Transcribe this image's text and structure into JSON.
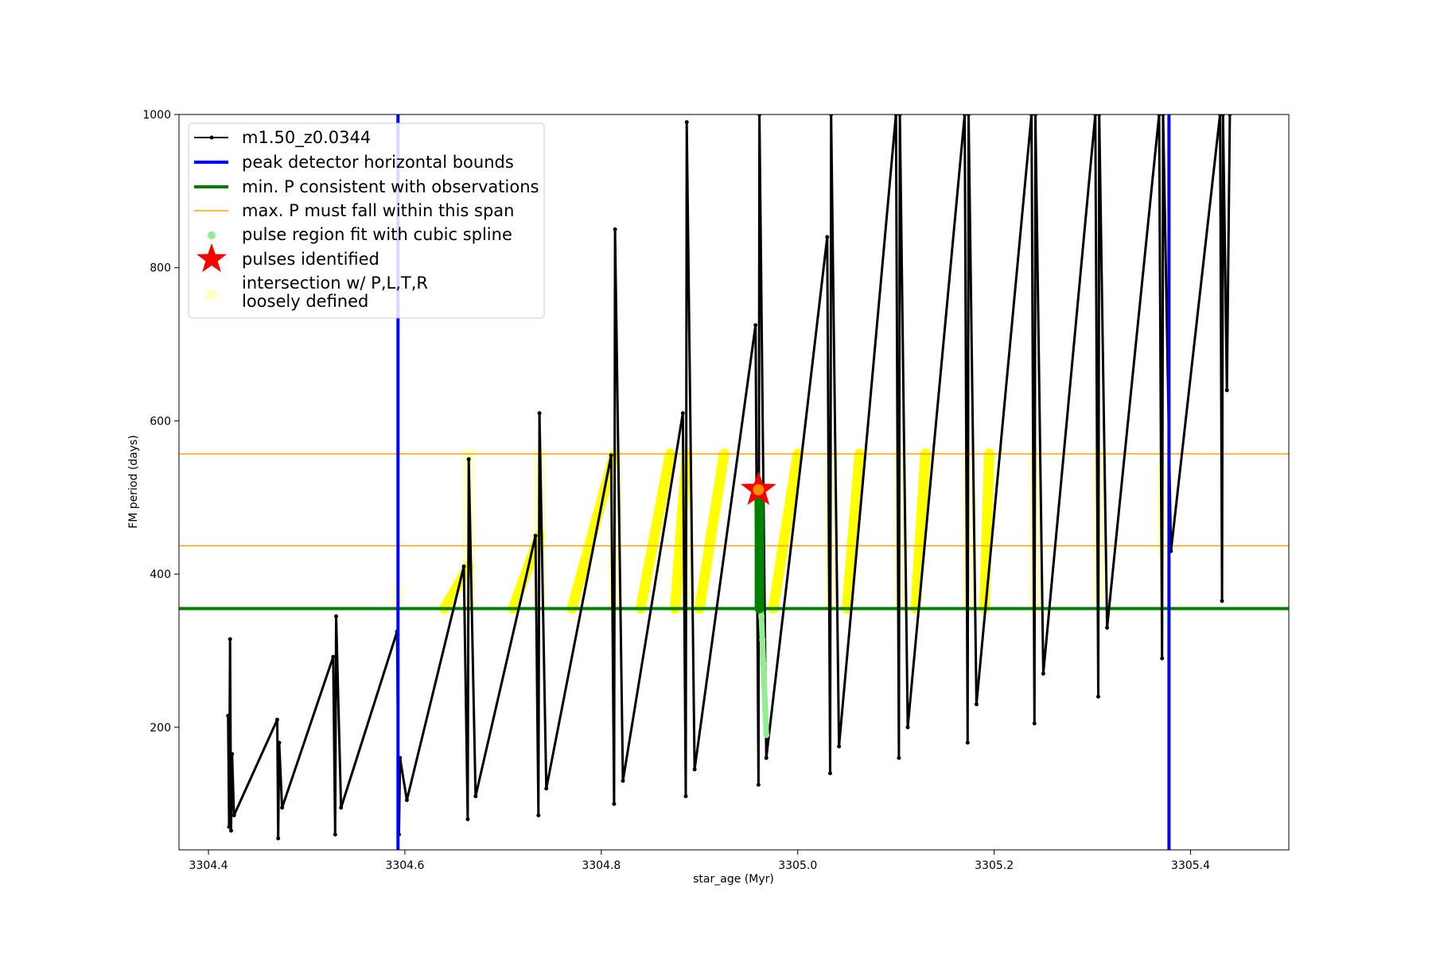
{
  "chart_data": {
    "type": "line",
    "title": "",
    "xlabel": "star_age (Myr)",
    "ylabel": "FM period (days)",
    "xlim": [
      3304.37,
      3305.5
    ],
    "ylim": [
      40,
      1000
    ],
    "xticks": [
      3304.4,
      3304.6,
      3304.8,
      3305.0,
      3305.2,
      3305.4
    ],
    "xtick_labels": [
      "3304.4",
      "3304.6",
      "3304.8",
      "3305.0",
      "3305.2",
      "3305.4"
    ],
    "yticks": [
      200,
      400,
      600,
      800,
      1000
    ],
    "ytick_labels": [
      "200",
      "400",
      "600",
      "800",
      "1000"
    ],
    "grid": false,
    "legend_position": "upper-left",
    "colors": {
      "track": "#000000",
      "bounds": "#0000ff",
      "min_p": "#008000",
      "max_p": "#ffa500",
      "spline": "#90ee90",
      "pulse": "#ff0000",
      "intersection": "#ffff00",
      "intersection_loose": "#ffffc8"
    },
    "legend": [
      {
        "label": "m1.50_z0.0344",
        "style": "line-marker"
      },
      {
        "label": "peak detector horizontal bounds",
        "style": "line-blue"
      },
      {
        "label": "min. P consistent with observations",
        "style": "line-green"
      },
      {
        "label": "max. P must fall within this span",
        "style": "line-orange"
      },
      {
        "label": "pulse region fit with cubic spline",
        "style": "dot-lightgreen"
      },
      {
        "label": "pulses identified",
        "style": "star-red"
      },
      {
        "label": "intersection w/ P,L,T,R\nloosely defined",
        "style": "dot-paleyellow"
      }
    ],
    "peak_detector_bounds_x": [
      3304.593,
      3305.378
    ],
    "min_p_y": 355,
    "max_p_span_y": [
      437,
      557
    ],
    "pulses_identified": [
      {
        "x": 3304.96,
        "y": 510
      }
    ],
    "track_anchors": [
      [
        3304.42,
        215
      ],
      [
        3304.421,
        70
      ],
      [
        3304.422,
        315
      ],
      [
        3304.423,
        65
      ],
      [
        3304.424,
        165
      ],
      [
        3304.426,
        85
      ],
      [
        3304.47,
        210
      ],
      [
        3304.471,
        55
      ],
      [
        3304.472,
        180
      ],
      [
        3304.475,
        95
      ],
      [
        3304.527,
        292
      ],
      [
        3304.529,
        60
      ],
      [
        3304.53,
        345
      ],
      [
        3304.535,
        95
      ],
      [
        3304.592,
        325
      ],
      [
        3304.594,
        60
      ],
      [
        3304.595,
        160
      ],
      [
        3304.602,
        105
      ],
      [
        3304.66,
        410
      ],
      [
        3304.664,
        80
      ],
      [
        3304.665,
        550
      ],
      [
        3304.672,
        110
      ],
      [
        3304.733,
        450
      ],
      [
        3304.736,
        85
      ],
      [
        3304.737,
        610
      ],
      [
        3304.744,
        120
      ],
      [
        3304.81,
        555
      ],
      [
        3304.813,
        100
      ],
      [
        3304.814,
        850
      ],
      [
        3304.822,
        130
      ],
      [
        3304.883,
        610
      ],
      [
        3304.886,
        110
      ],
      [
        3304.887,
        990
      ],
      [
        3304.895,
        145
      ],
      [
        3304.957,
        725
      ],
      [
        3304.96,
        125
      ],
      [
        3304.961,
        1000
      ],
      [
        3304.968,
        160
      ],
      [
        3305.03,
        840
      ],
      [
        3305.033,
        140
      ],
      [
        3305.034,
        1000
      ],
      [
        3305.042,
        175
      ],
      [
        3305.1,
        1000
      ],
      [
        3305.103,
        160
      ],
      [
        3305.104,
        1000
      ],
      [
        3305.112,
        200
      ],
      [
        3305.17,
        1000
      ],
      [
        3305.173,
        180
      ],
      [
        3305.174,
        1000
      ],
      [
        3305.182,
        230
      ],
      [
        3305.238,
        1000
      ],
      [
        3305.241,
        205
      ],
      [
        3305.242,
        1000
      ],
      [
        3305.25,
        270
      ],
      [
        3305.303,
        1000
      ],
      [
        3305.306,
        240
      ],
      [
        3305.307,
        1000
      ],
      [
        3305.315,
        330
      ],
      [
        3305.368,
        1000
      ],
      [
        3305.371,
        290
      ],
      [
        3305.372,
        1000
      ],
      [
        3305.38,
        430
      ],
      [
        3305.43,
        1000
      ],
      [
        3305.432,
        365
      ],
      [
        3305.433,
        1000
      ],
      [
        3305.437,
        640
      ],
      [
        3305.44,
        1000
      ]
    ],
    "spline_region": {
      "x": [
        3304.958,
        3304.968
      ],
      "y": [
        190,
        500
      ]
    },
    "intersections": [
      {
        "x": [
          3304.64,
          3304.665
        ],
        "y": [
          355,
          410
        ]
      },
      {
        "x": [
          3304.71,
          3304.737
        ],
        "y": [
          355,
          450
        ]
      },
      {
        "x": [
          3304.77,
          3304.813
        ],
        "y": [
          355,
          555
        ]
      },
      {
        "x": [
          3304.84,
          3304.87
        ],
        "y": [
          355,
          557
        ]
      },
      {
        "x": [
          3304.875,
          3304.887
        ],
        "y": [
          355,
          557
        ]
      },
      {
        "x": [
          3304.9,
          3304.925
        ],
        "y": [
          355,
          557
        ]
      },
      {
        "x": [
          3304.975,
          3305.0
        ],
        "y": [
          355,
          557
        ]
      },
      {
        "x": [
          3305.05,
          3305.063
        ],
        "y": [
          355,
          557
        ]
      },
      {
        "x": [
          3305.12,
          3305.13
        ],
        "y": [
          355,
          557
        ]
      },
      {
        "x": [
          3305.19,
          3305.195
        ],
        "y": [
          355,
          557
        ]
      }
    ],
    "intersections_loose": [
      {
        "x": 3304.593,
        "y": [
          365,
          380
        ]
      },
      {
        "x": 3304.665,
        "y": [
          355,
          557
        ]
      },
      {
        "x": 3304.737,
        "y": [
          355,
          557
        ]
      },
      {
        "x": 3304.814,
        "y": [
          355,
          557
        ]
      },
      {
        "x": 3304.887,
        "y": [
          355,
          557
        ]
      },
      {
        "x": 3305.034,
        "y": [
          355,
          557
        ]
      },
      {
        "x": 3305.104,
        "y": [
          355,
          557
        ]
      },
      {
        "x": 3305.174,
        "y": [
          355,
          557
        ]
      },
      {
        "x": 3305.242,
        "y": [
          355,
          557
        ]
      },
      {
        "x": 3305.307,
        "y": [
          370,
          557
        ]
      },
      {
        "x": 3305.372,
        "y": [
          430,
          540
        ]
      }
    ],
    "min_p_points": {
      "x": 3304.961,
      "y": [
        355,
        500
      ]
    }
  }
}
